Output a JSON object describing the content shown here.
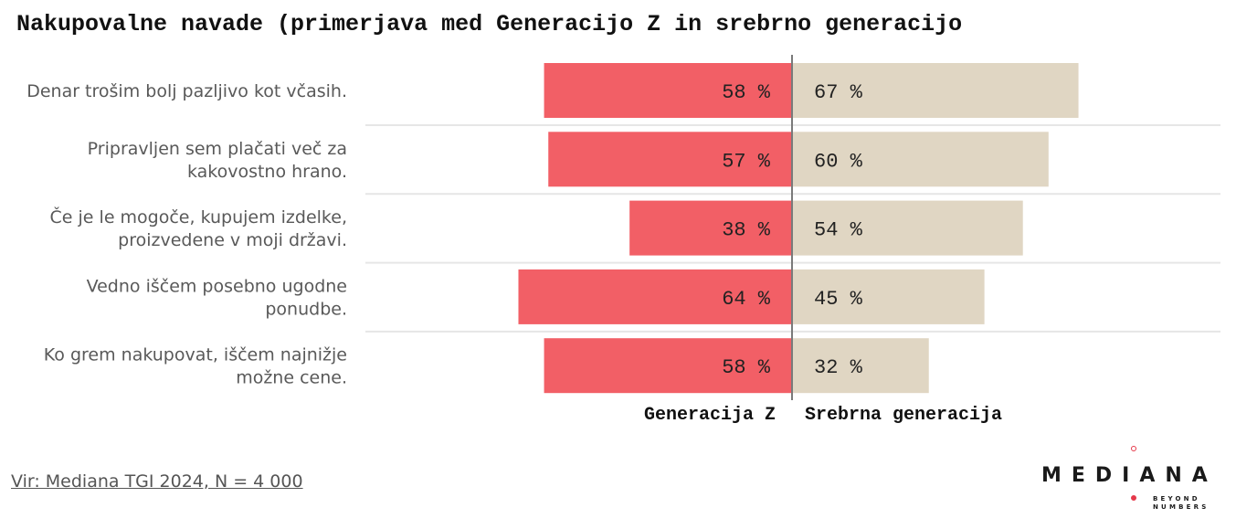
{
  "title": "Nakupovalne navade (primerjava med Generacijo Z in srebrno generacijo",
  "source": "Vir: Mediana TGI 2024, N = 4 000",
  "logo": {
    "name": "MEDIANA",
    "tagline_line1": "BEYOND",
    "tagline_line2": "NUMBERS"
  },
  "colors": {
    "gen_z": "#f25f66",
    "silver": "#e0d6c3",
    "separator": "#e6e6e6",
    "axis": "#7a7a7a",
    "accent": "#e5394a"
  },
  "chart_data": {
    "type": "bar",
    "orientation": "horizontal-diverging",
    "value_suffix": " %",
    "categories": [
      [
        "Denar trošim bolj pazljivo kot včasih."
      ],
      [
        "Pripravljen sem plačati več za",
        "kakovostno hrano."
      ],
      [
        "Če je le mogoče, kupujem izdelke,",
        "proizvedene v moji državi."
      ],
      [
        "Vedno iščem posebno ugodne",
        "ponudbe."
      ],
      [
        "Ko grem nakupovat, iščem najnižje",
        "možne cene."
      ]
    ],
    "series": [
      {
        "name": "Generacija Z",
        "side": "left",
        "values": [
          58,
          57,
          38,
          64,
          58
        ]
      },
      {
        "name": "Srebrna generacija",
        "side": "right",
        "values": [
          67,
          60,
          54,
          45,
          32
        ]
      }
    ],
    "legend": "bottom-center",
    "grid": false
  }
}
